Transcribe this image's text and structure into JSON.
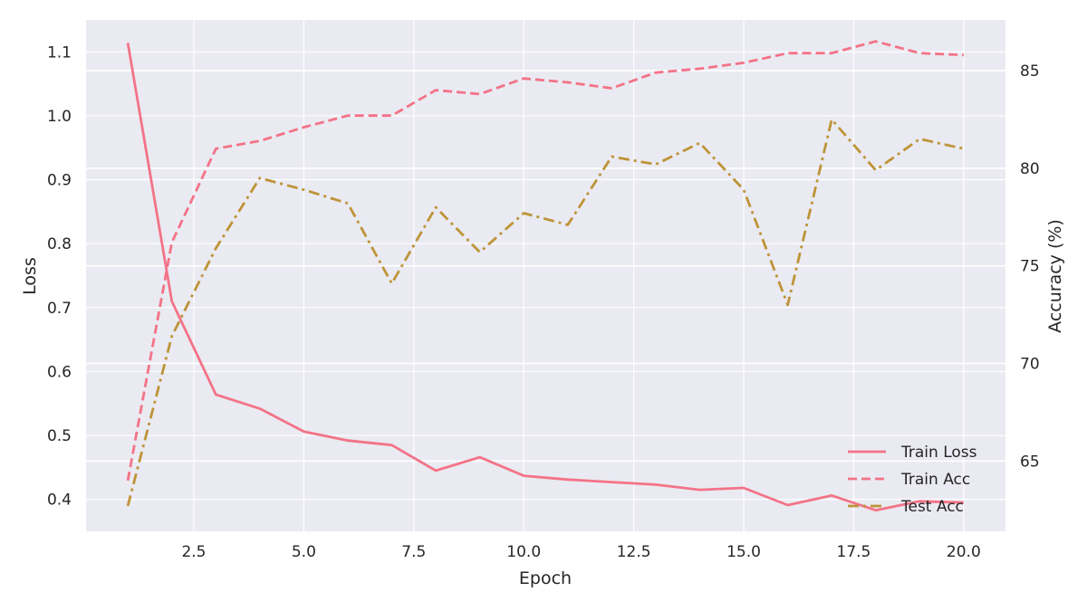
{
  "chart_data": {
    "type": "line",
    "xlabel": "Epoch",
    "ylabel_left": "Loss",
    "ylabel_right": "Accuracy (%)",
    "x": [
      1,
      2,
      3,
      4,
      5,
      6,
      7,
      8,
      9,
      10,
      11,
      12,
      13,
      14,
      15,
      16,
      17,
      18,
      19,
      20
    ],
    "xlim": [
      0.05,
      20.95
    ],
    "xticks": [
      2.5,
      5.0,
      7.5,
      10.0,
      12.5,
      15.0,
      17.5,
      20.0
    ],
    "xtick_labels": [
      "2.5",
      "5.0",
      "7.5",
      "10.0",
      "12.5",
      "15.0",
      "17.5",
      "20.0"
    ],
    "ylim_left": [
      0.35,
      1.15
    ],
    "yticks_left": [
      0.4,
      0.5,
      0.6,
      0.7,
      0.8,
      0.9,
      1.0,
      1.1
    ],
    "ytick_labels_left": [
      "0.4",
      "0.5",
      "0.6",
      "0.7",
      "0.8",
      "0.9",
      "1.0",
      "1.1"
    ],
    "ylim_right": [
      61.4,
      87.6
    ],
    "yticks_right": [
      65,
      70,
      75,
      80,
      85
    ],
    "ytick_labels_right": [
      "65",
      "70",
      "75",
      "80",
      "85"
    ],
    "grid": true,
    "legend_position": "lower-right",
    "series": [
      {
        "name": "Train Loss",
        "axis": "left",
        "style": "solid",
        "color": "#f37387",
        "values": [
          1.114,
          0.71,
          0.564,
          0.542,
          0.506,
          0.492,
          0.485,
          0.445,
          0.466,
          0.437,
          0.431,
          0.427,
          0.423,
          0.415,
          0.418,
          0.391,
          0.406,
          0.383,
          0.397,
          0.395
        ]
      },
      {
        "name": "Train Acc",
        "axis": "right",
        "style": "dashed",
        "color": "#f37387",
        "values": [
          64.0,
          76.2,
          81.0,
          81.4,
          82.1,
          82.7,
          82.7,
          84.0,
          83.8,
          84.6,
          84.4,
          84.1,
          84.9,
          85.1,
          85.4,
          85.9,
          85.9,
          86.5,
          85.9,
          85.8
        ]
      },
      {
        "name": "Test Acc",
        "axis": "right",
        "style": "dashdot",
        "color": "#be9438",
        "values": [
          62.7,
          71.4,
          75.9,
          79.5,
          78.9,
          78.2,
          74.1,
          78.0,
          75.7,
          77.7,
          77.1,
          80.6,
          80.2,
          81.3,
          78.9,
          73.0,
          82.5,
          79.9,
          81.5,
          81.0
        ]
      }
    ]
  }
}
